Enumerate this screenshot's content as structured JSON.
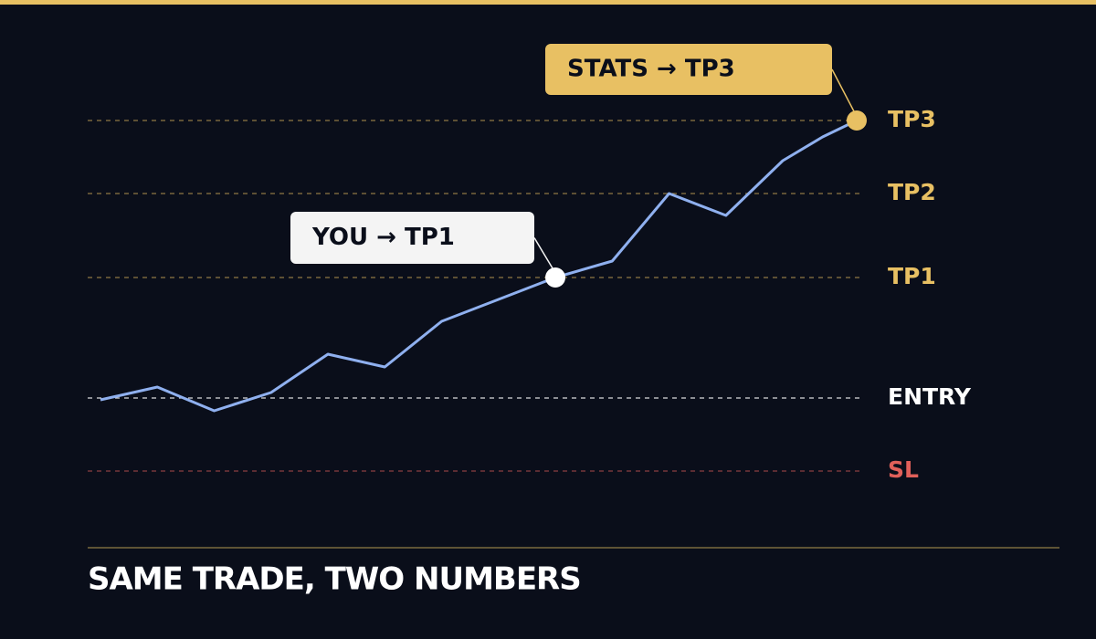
{
  "chart_data": {
    "type": "line",
    "title": "SAME TRADE, TWO NUMBERS",
    "x": [
      0,
      1,
      2,
      3,
      4,
      5,
      6,
      7,
      8,
      9,
      10,
      11,
      12,
      12.7,
      13.3
    ],
    "series": [
      {
        "color": "#8fb0ef",
        "values": [
          30.5,
          34,
          27.5,
          32.5,
          43,
          39.5,
          52,
          58,
          64,
          68.5,
          87,
          81,
          96,
          102.5,
          107
        ]
      }
    ],
    "xlim": [
      0,
      13.3
    ],
    "ylim": [
      0,
      120
    ],
    "yticks": [
      {
        "value": 11,
        "label": "SL"
      },
      {
        "value": 31,
        "label": "ENTRY"
      },
      {
        "value": 64,
        "label": "TP1"
      },
      {
        "value": 87,
        "label": "TP2"
      },
      {
        "value": 107,
        "label": "TP3"
      }
    ],
    "ytick_colors": [
      "#e0605a",
      "#ffffff",
      "#e8c063",
      "#e8c063",
      "#e8c063"
    ],
    "annotations": [
      "YOU → TP1",
      "STATS → TP3"
    ],
    "annotation_colors": [
      "#f4f4f4",
      "#e8c063"
    ]
  }
}
